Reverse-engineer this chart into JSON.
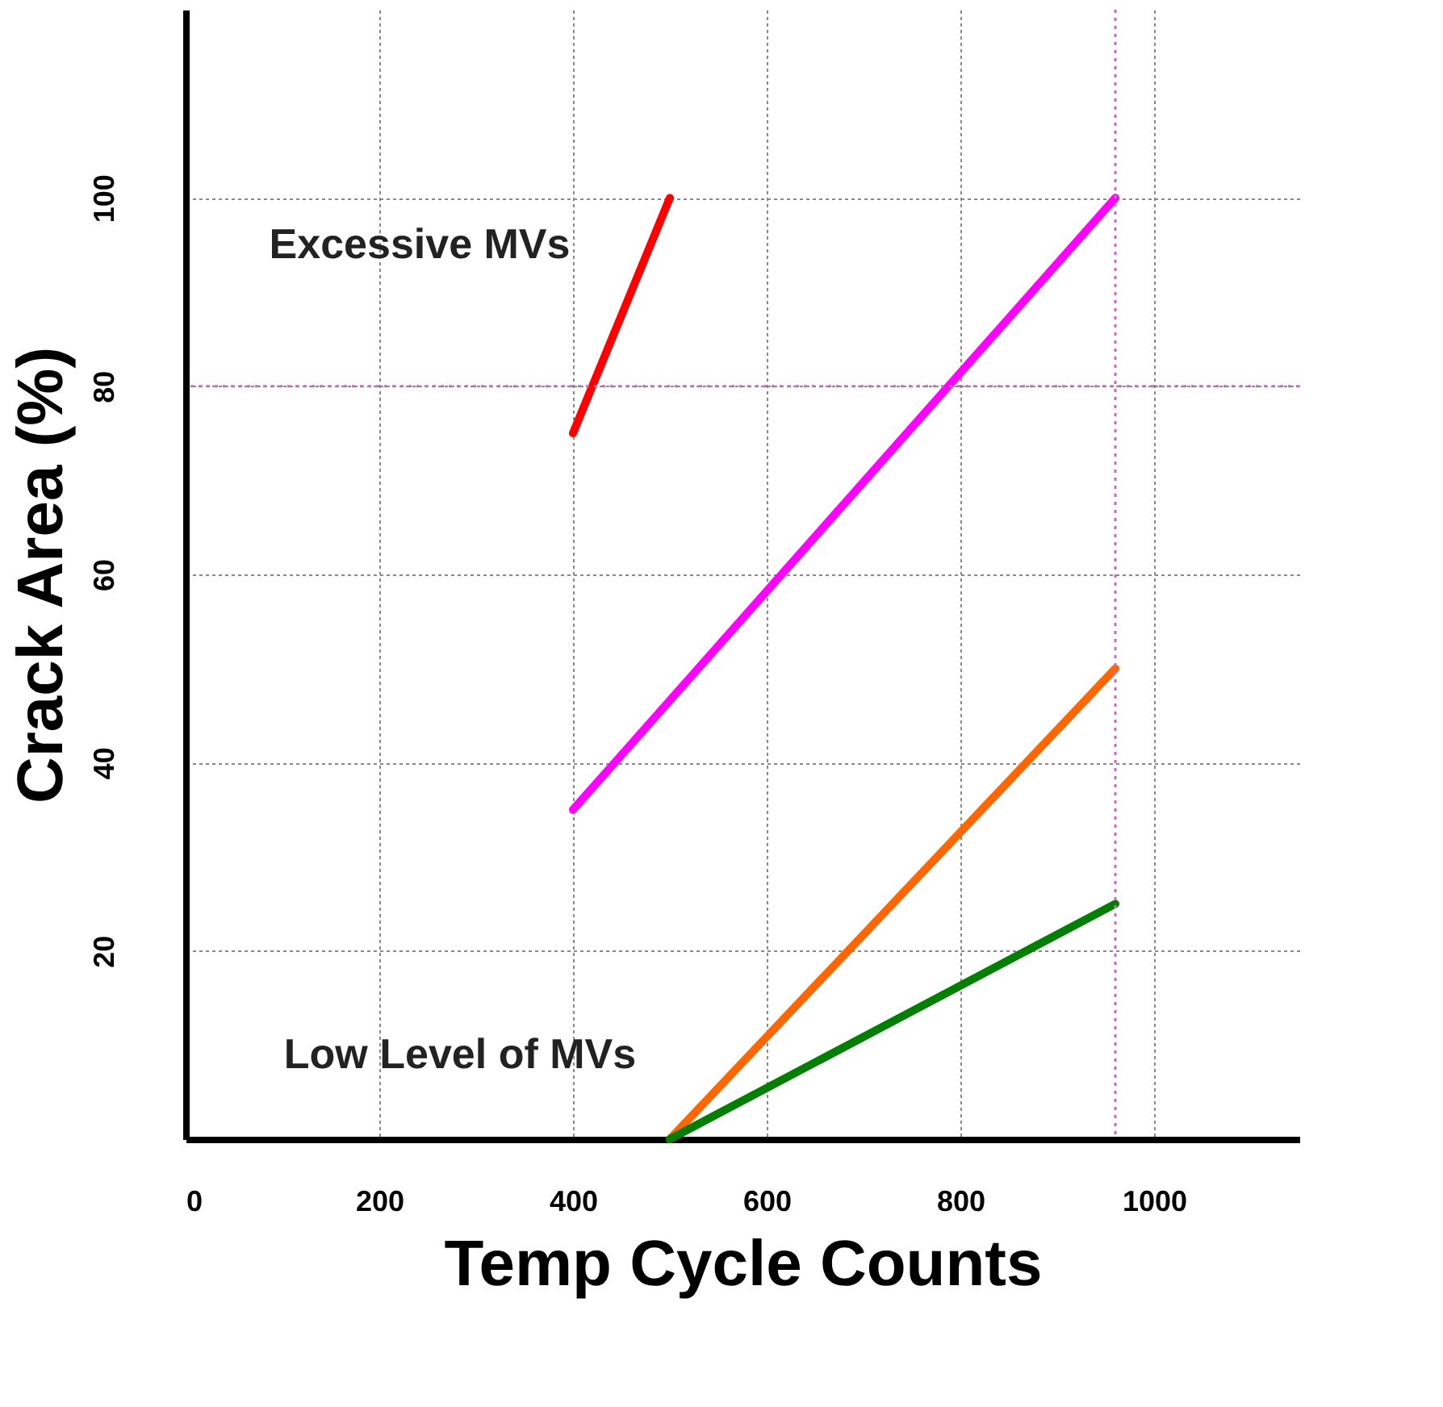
{
  "chart_data": {
    "type": "line",
    "xlabel": "Temp Cycle Counts",
    "ylabel": "Crack Area (%)",
    "series": [
      {
        "color": "#ff0000",
        "x": [
          400,
          500
        ],
        "values": [
          75,
          100
        ]
      },
      {
        "color": "#ff00ff",
        "x": [
          400,
          960
        ],
        "values": [
          35,
          100
        ]
      },
      {
        "color": "#ff6600",
        "x": [
          500,
          960
        ],
        "values": [
          0,
          50
        ]
      },
      {
        "color": "#008000",
        "x": [
          500,
          960
        ],
        "values": [
          0,
          25
        ]
      }
    ],
    "xlim": [
      0,
      1150
    ],
    "ylim": [
      0,
      120
    ],
    "xticks": [
      0,
      200,
      400,
      600,
      800,
      1000
    ],
    "yticks": [
      20,
      40,
      60,
      80,
      100
    ],
    "grid": true,
    "legend": false,
    "marker": "none",
    "line_style": "solid",
    "ref_lines": [
      {
        "axis": "y",
        "value": 80,
        "color": "#cc66cc",
        "line_style": "dotted"
      },
      {
        "axis": "x",
        "value": 960,
        "color": "#cc66cc",
        "line_style": "dotted"
      }
    ],
    "annotations": [
      "Excessive MVs",
      "Low Level of MVs"
    ]
  }
}
